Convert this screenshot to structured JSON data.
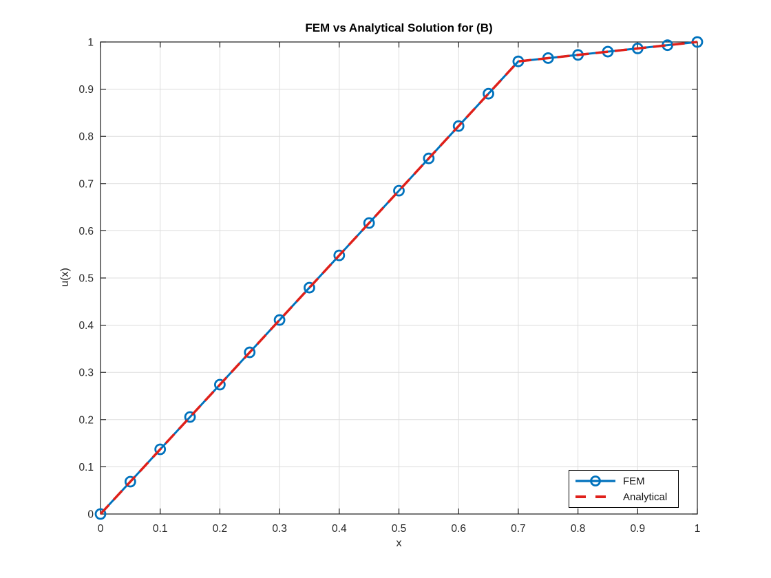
{
  "figure": {
    "background": "#ffffff"
  },
  "chart_data": {
    "type": "line",
    "title": "FEM vs Analytical Solution for (B)",
    "xlabel": "x",
    "ylabel": "u(x)",
    "xlim": [
      0,
      1
    ],
    "ylim": [
      0,
      1
    ],
    "xticks": [
      0,
      0.1,
      0.2,
      0.3,
      0.4,
      0.5,
      0.6,
      0.7,
      0.8,
      0.9,
      1
    ],
    "yticks": [
      0,
      0.1,
      0.2,
      0.3,
      0.4,
      0.5,
      0.6,
      0.7,
      0.8,
      0.9,
      1
    ],
    "xtick_labels": [
      "0",
      "0.1",
      "0.2",
      "0.3",
      "0.4",
      "0.5",
      "0.6",
      "0.7",
      "0.8",
      "0.9",
      "1"
    ],
    "ytick_labels": [
      "0",
      "0.1",
      "0.2",
      "0.3",
      "0.4",
      "0.5",
      "0.6",
      "0.7",
      "0.8",
      "0.9",
      "1"
    ],
    "grid": true,
    "grid_color": "#dcdcdc",
    "axis_color": "#1a1a1a",
    "legend": {
      "position": "lower-right",
      "border_color": "#000000",
      "background": "#ffffff"
    },
    "series": [
      {
        "name": "FEM",
        "color": "#0072BD",
        "line_style": "solid",
        "line_width": 3,
        "marker": "circle",
        "marker_size": 7,
        "x": [
          0,
          0.05,
          0.1,
          0.15,
          0.2,
          0.25,
          0.3,
          0.35,
          0.4,
          0.45,
          0.5,
          0.55,
          0.6,
          0.65,
          0.7,
          0.75,
          0.8,
          0.85,
          0.9,
          0.95,
          1
        ],
        "y": [
          0,
          0.0685,
          0.137,
          0.2055,
          0.274,
          0.3425,
          0.411,
          0.4795,
          0.5479,
          0.6164,
          0.6849,
          0.7534,
          0.8219,
          0.8904,
          0.9589,
          0.9658,
          0.9726,
          0.9795,
          0.9863,
          0.9932,
          1
        ]
      },
      {
        "name": "Analytical",
        "color": "#DF201A",
        "line_style": "dashed",
        "line_width": 3.5,
        "marker": "none",
        "x": [
          0,
          0.7,
          1
        ],
        "y": [
          0,
          0.9589,
          1
        ]
      }
    ]
  }
}
